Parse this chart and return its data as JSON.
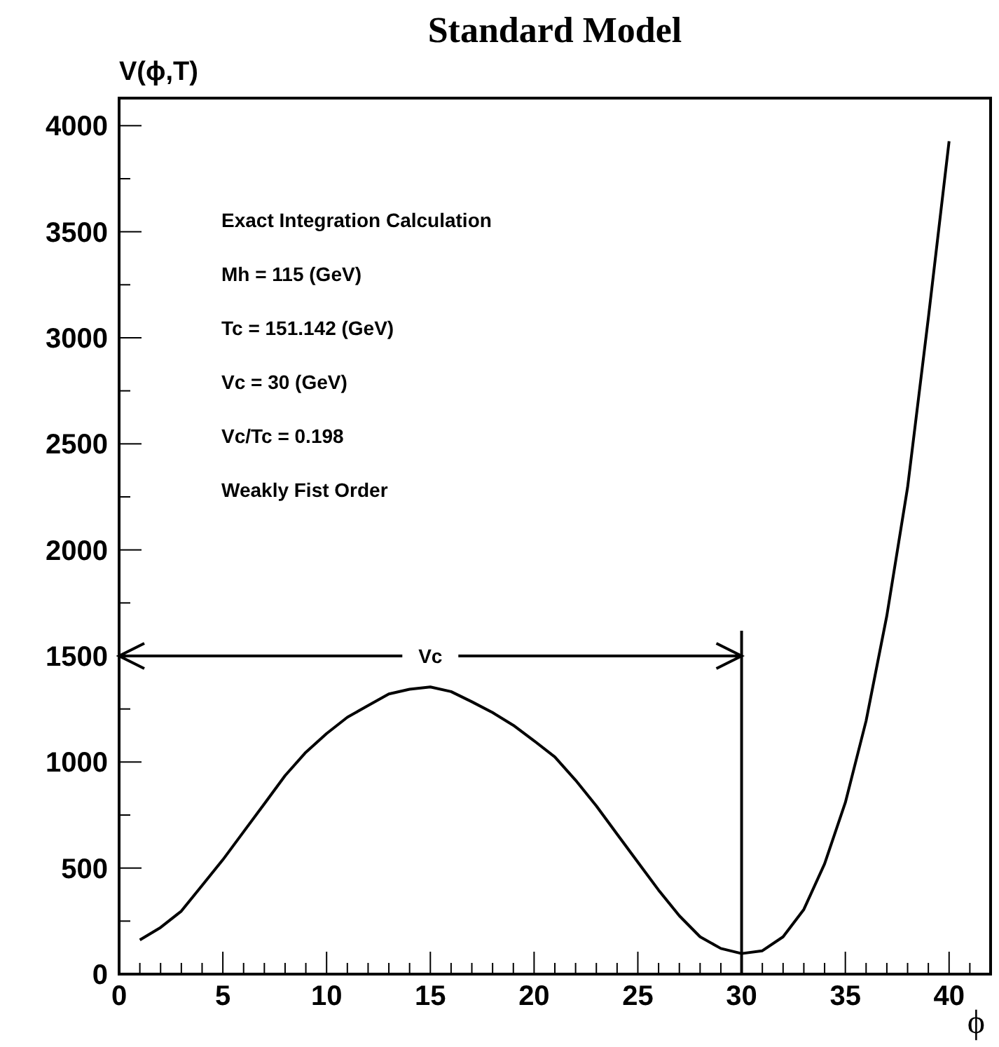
{
  "chart_data": {
    "type": "line",
    "title": "Standard Model",
    "xlabel": "ϕ",
    "ylabel": "V(ϕ,T)",
    "x": [
      1,
      2,
      3,
      4,
      5,
      6,
      7,
      8,
      9,
      10,
      11,
      12,
      13,
      14,
      15,
      16,
      17,
      18,
      19,
      20,
      21,
      22,
      23,
      24,
      25,
      26,
      27,
      28,
      29,
      30,
      31,
      32,
      33,
      34,
      35,
      36,
      37,
      38,
      39,
      40
    ],
    "series": [
      {
        "color": "#000000",
        "values": [
          161,
          220,
          297,
          418,
          539,
          671,
          803,
          936,
          1046,
          1134,
          1211,
          1266,
          1321,
          1343,
          1354,
          1332,
          1284,
          1233,
          1173,
          1100,
          1024,
          914,
          793,
          660,
          528,
          396,
          275,
          176,
          121,
          97,
          110,
          176,
          305,
          520,
          809,
          1194,
          1690,
          2295,
          3093,
          3927
        ]
      }
    ],
    "xlim": [
      0,
      42
    ],
    "ylim": [
      0,
      4130
    ],
    "xticks": [
      0,
      {
        "value": 1,
        "label": null
      },
      {
        "value": 2,
        "label": null
      },
      {
        "value": 3,
        "label": null
      },
      {
        "value": 4,
        "label": null
      },
      5,
      {
        "value": 6,
        "label": null
      },
      {
        "value": 7,
        "label": null
      },
      {
        "value": 8,
        "label": null
      },
      {
        "value": 9,
        "label": null
      },
      10,
      {
        "value": 11,
        "label": null
      },
      {
        "value": 12,
        "label": null
      },
      {
        "value": 13,
        "label": null
      },
      {
        "value": 14,
        "label": null
      },
      15,
      {
        "value": 16,
        "label": null
      },
      {
        "value": 17,
        "label": null
      },
      {
        "value": 18,
        "label": null
      },
      {
        "value": 19,
        "label": null
      },
      20,
      {
        "value": 21,
        "label": null
      },
      {
        "value": 22,
        "label": null
      },
      {
        "value": 23,
        "label": null
      },
      {
        "value": 24,
        "label": null
      },
      25,
      {
        "value": 26,
        "label": null
      },
      {
        "value": 27,
        "label": null
      },
      {
        "value": 28,
        "label": null
      },
      {
        "value": 29,
        "label": null
      },
      30,
      {
        "value": 31,
        "label": null
      },
      {
        "value": 32,
        "label": null
      },
      {
        "value": 33,
        "label": null
      },
      {
        "value": 34,
        "label": null
      },
      35,
      {
        "value": 36,
        "label": null
      },
      {
        "value": 37,
        "label": null
      },
      {
        "value": 38,
        "label": null
      },
      {
        "value": 39,
        "label": null
      },
      40,
      {
        "value": 41,
        "label": null
      }
    ],
    "yticks": [
      0,
      {
        "value": 250,
        "label": null
      },
      500,
      {
        "value": 750,
        "label": null
      },
      1000,
      {
        "value": 1250,
        "label": null
      },
      1500,
      {
        "value": 1750,
        "label": null
      },
      2000,
      {
        "value": 2250,
        "label": null
      },
      2500,
      {
        "value": 2750,
        "label": null
      },
      3000,
      {
        "value": 3250,
        "label": null
      },
      3500,
      {
        "value": 3750,
        "label": null
      },
      4000
    ],
    "ref_lines": [
      {
        "axis": "x",
        "value": 30
      },
      {
        "axis": "y",
        "value": 1500,
        "label": "Vc"
      }
    ],
    "annotations": [
      "Exact Integration Calculation",
      "Mh = 115 (GeV)",
      "Tc = 151.142 (GeV)",
      "Vc = 30 (GeV)",
      "Vc/Tc = 0.198",
      "Weakly Fist Order"
    ],
    "marker": "none",
    "line_style": "solid"
  }
}
